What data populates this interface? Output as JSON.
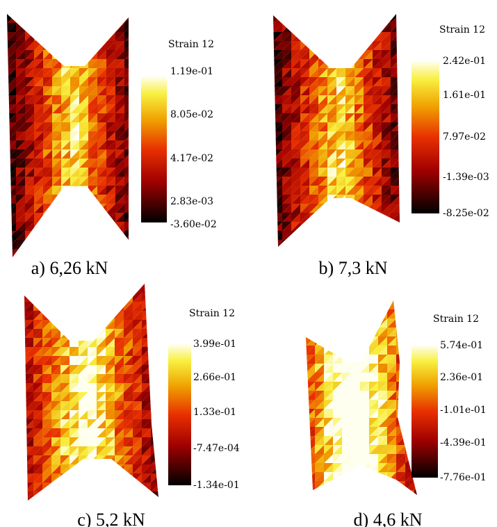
{
  "panels": [
    {
      "caption": "a) 6,26 kN",
      "colorbar": {
        "title": "Strain 12",
        "labels": [
          "1.19e-01",
          "8.05e-02",
          "4.17e-02",
          "2.83e-03",
          "-3.60e-02"
        ]
      }
    },
    {
      "caption": "b) 7,3 kN",
      "colorbar": {
        "title": "Strain 12",
        "labels": [
          "2.42e-01",
          "1.61e-01",
          "7.97e-02",
          "-1.39e-03",
          "-8.25e-02"
        ]
      }
    },
    {
      "caption": "c) 5,2 kN",
      "colorbar": {
        "title": "Strain 12",
        "labels": [
          "3.99e-01",
          "2.66e-01",
          "1.33e-01",
          "-7.47e-04",
          "-1.34e-01"
        ]
      }
    },
    {
      "caption": "d) 4,6 kN",
      "colorbar": {
        "title": "Strain 12",
        "labels": [
          "5.74e-01",
          "2.36e-01",
          "-1.01e-01",
          "-4.39e-01",
          "-7.76e-01"
        ]
      }
    }
  ]
}
